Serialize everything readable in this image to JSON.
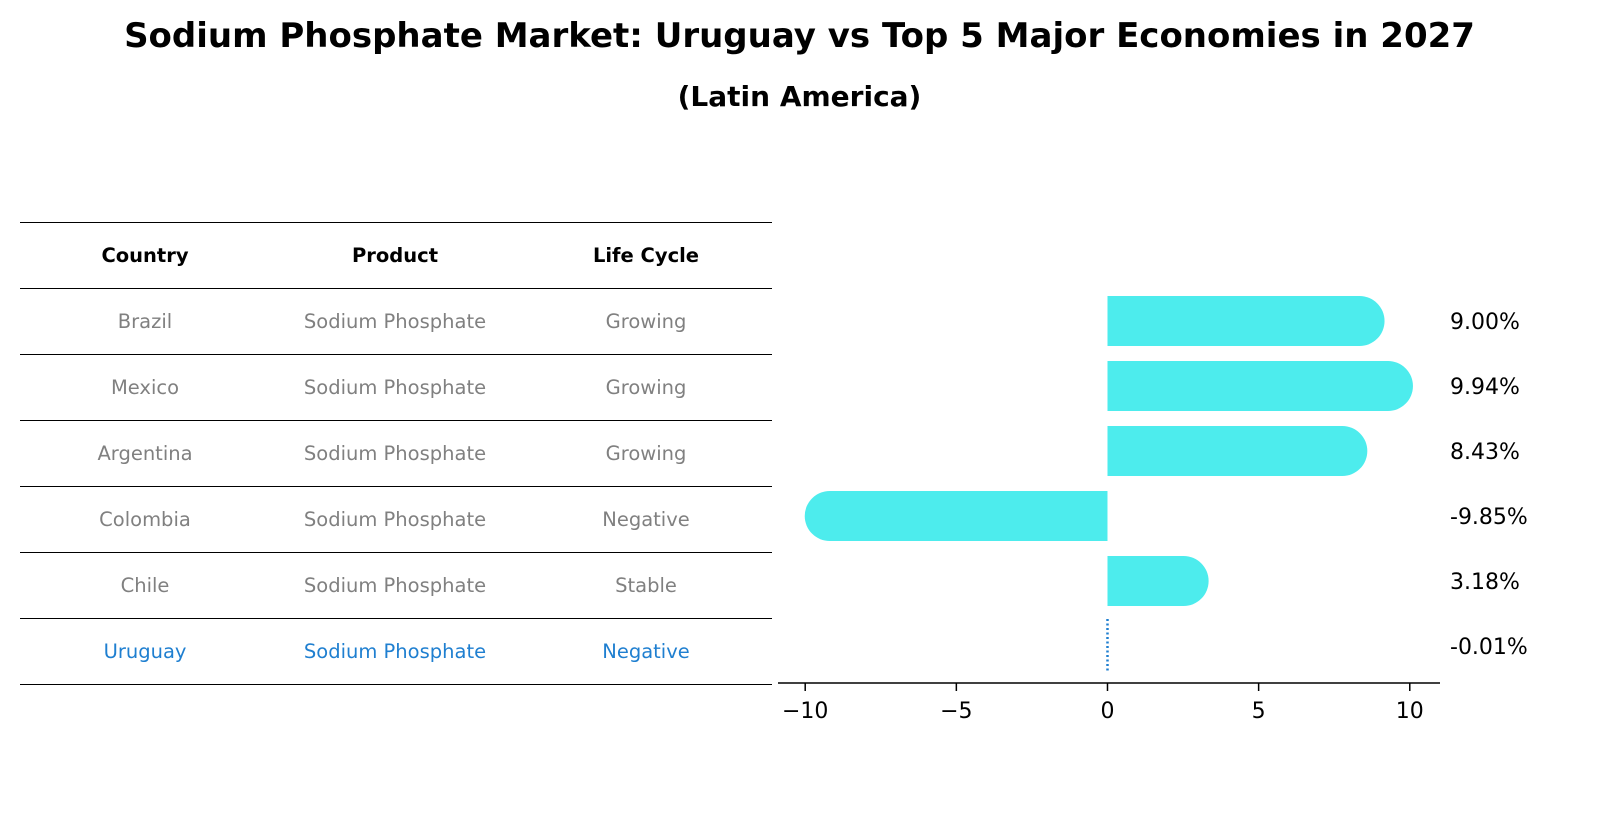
{
  "title": "Sodium Phosphate Market: Uruguay vs Top 5 Major Economies in 2027",
  "subtitle": "(Latin America)",
  "table": {
    "headers": [
      "Country",
      "Product",
      "Life Cycle"
    ],
    "rows": [
      {
        "country": "Brazil",
        "product": "Sodium Phosphate",
        "life_cycle": "Growing"
      },
      {
        "country": "Mexico",
        "product": "Sodium Phosphate",
        "life_cycle": "Growing"
      },
      {
        "country": "Argentina",
        "product": "Sodium Phosphate",
        "life_cycle": "Growing"
      },
      {
        "country": "Colombia",
        "product": "Sodium Phosphate",
        "life_cycle": "Negative"
      },
      {
        "country": "Chile",
        "product": "Sodium Phosphate",
        "life_cycle": "Stable"
      },
      {
        "country": "Uruguay",
        "product": "Sodium Phosphate",
        "life_cycle": "Negative"
      }
    ]
  },
  "colors": {
    "bar": "#4deced",
    "focus": "#1f7fd0",
    "muted": "#808080"
  },
  "chart_data": {
    "type": "bar",
    "orientation": "horizontal",
    "categories": [
      "Brazil",
      "Mexico",
      "Argentina",
      "Colombia",
      "Chile",
      "Uruguay"
    ],
    "values": [
      9.0,
      9.94,
      8.43,
      -9.85,
      3.18,
      -0.01
    ],
    "value_labels": [
      "9.00%",
      "9.94%",
      "8.43%",
      "-9.85%",
      "3.18%",
      "-0.01%"
    ],
    "xlim": [
      -10.9,
      11
    ],
    "xticks": [
      -10,
      -5,
      0,
      5,
      10
    ],
    "xtick_labels": [
      "−10",
      "−5",
      "0",
      "5",
      "10"
    ],
    "title": "",
    "xlabel": "",
    "ylabel": "",
    "grid": false,
    "legend": "none"
  }
}
